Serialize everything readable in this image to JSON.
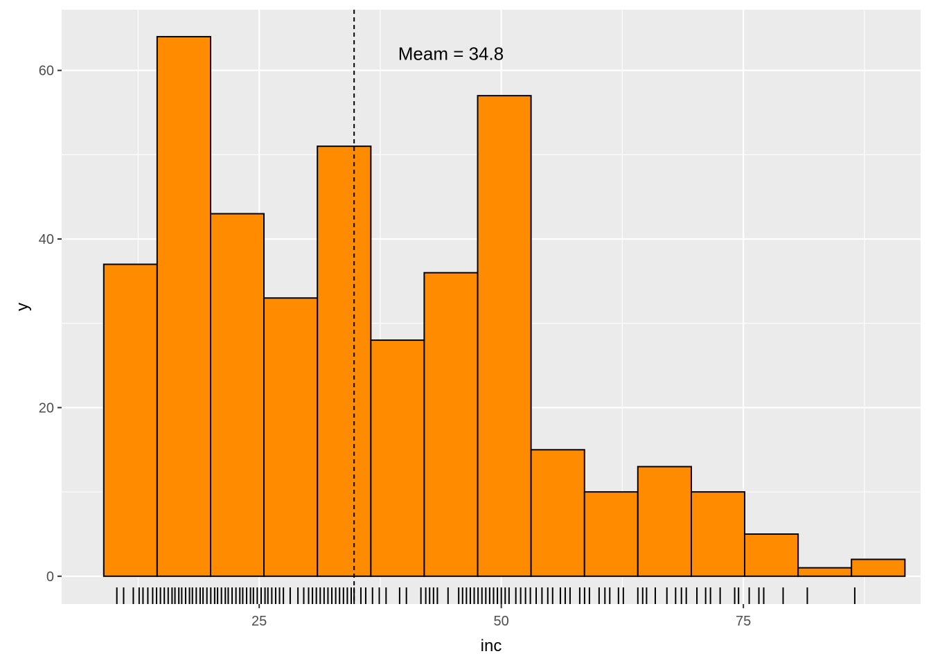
{
  "chart_data": {
    "type": "histogram",
    "xlabel": "inc",
    "ylabel": "y",
    "xlim": [
      4.6,
      93.3
    ],
    "ylim": [
      -3.3,
      67.2
    ],
    "x_ticks": [
      25,
      50,
      75
    ],
    "x_minor_ticks": [
      12.5,
      37.5,
      62.5,
      87.5
    ],
    "y_ticks": [
      0,
      20,
      40,
      60
    ],
    "y_minor_ticks": [
      10,
      30,
      50
    ],
    "grid": true,
    "bins": [
      {
        "x0": 8.95,
        "x1": 14.46,
        "count": 37
      },
      {
        "x0": 14.46,
        "x1": 19.98,
        "count": 64
      },
      {
        "x0": 19.98,
        "x1": 25.49,
        "count": 43
      },
      {
        "x0": 25.49,
        "x1": 31.01,
        "count": 33
      },
      {
        "x0": 31.01,
        "x1": 36.53,
        "count": 51
      },
      {
        "x0": 36.53,
        "x1": 42.04,
        "count": 28
      },
      {
        "x0": 42.04,
        "x1": 47.56,
        "count": 36
      },
      {
        "x0": 47.56,
        "x1": 53.07,
        "count": 57
      },
      {
        "x0": 53.07,
        "x1": 58.59,
        "count": 15
      },
      {
        "x0": 58.59,
        "x1": 64.1,
        "count": 10
      },
      {
        "x0": 64.1,
        "x1": 69.62,
        "count": 13
      },
      {
        "x0": 69.62,
        "x1": 75.13,
        "count": 10
      },
      {
        "x0": 75.13,
        "x1": 80.65,
        "count": 5
      },
      {
        "x0": 80.65,
        "x1": 86.16,
        "count": 1
      },
      {
        "x0": 86.16,
        "x1": 91.68,
        "count": 2
      }
    ],
    "rug": [
      10.3,
      11.0,
      12.0,
      12.6,
      13.0,
      13.5,
      14.0,
      14.4,
      14.8,
      15.2,
      15.6,
      16.0,
      16.3,
      16.7,
      17.0,
      17.4,
      17.8,
      18.1,
      18.5,
      18.9,
      19.2,
      19.6,
      20.0,
      20.4,
      20.7,
      21.1,
      21.5,
      21.8,
      22.2,
      22.6,
      23.0,
      23.3,
      23.7,
      24.1,
      24.4,
      24.8,
      25.2,
      25.6,
      25.9,
      26.3,
      26.7,
      27.1,
      27.5,
      28.2,
      29.0,
      29.6,
      30.1,
      30.5,
      30.9,
      31.3,
      31.7,
      32.1,
      32.5,
      32.9,
      33.3,
      33.7,
      34.1,
      34.5,
      34.8,
      35.5,
      36.0,
      36.7,
      37.4,
      38.1,
      39.5,
      40.2,
      41.7,
      42.2,
      42.6,
      43.0,
      43.4,
      44.5,
      45.6,
      46.0,
      46.4,
      46.8,
      47.2,
      47.6,
      48.0,
      48.4,
      48.8,
      49.2,
      49.6,
      50.0,
      50.4,
      50.8,
      51.5,
      52.0,
      52.5,
      53.0,
      53.6,
      54.2,
      54.8,
      55.3,
      56.1,
      56.6,
      57.1,
      58.1,
      58.6,
      59.1,
      60.1,
      60.7,
      61.2,
      62.1,
      62.6,
      64.1,
      64.6,
      65.0,
      65.9,
      67.1,
      68.0,
      68.6,
      69.1,
      70.2,
      71.1,
      71.6,
      72.6,
      74.1,
      74.5,
      75.6,
      76.6,
      77.1,
      79.1,
      81.6,
      86.5
    ],
    "mean": 34.8,
    "annotation": {
      "text": "Meam = 34.8",
      "x": 44.8,
      "y": 62
    },
    "colors": {
      "panel": "#ebebeb",
      "grid": "#ffffff",
      "bar_fill": "#ff8c00",
      "bar_stroke": "#000000",
      "mean_line": "#000000",
      "rug": "#000000"
    }
  }
}
